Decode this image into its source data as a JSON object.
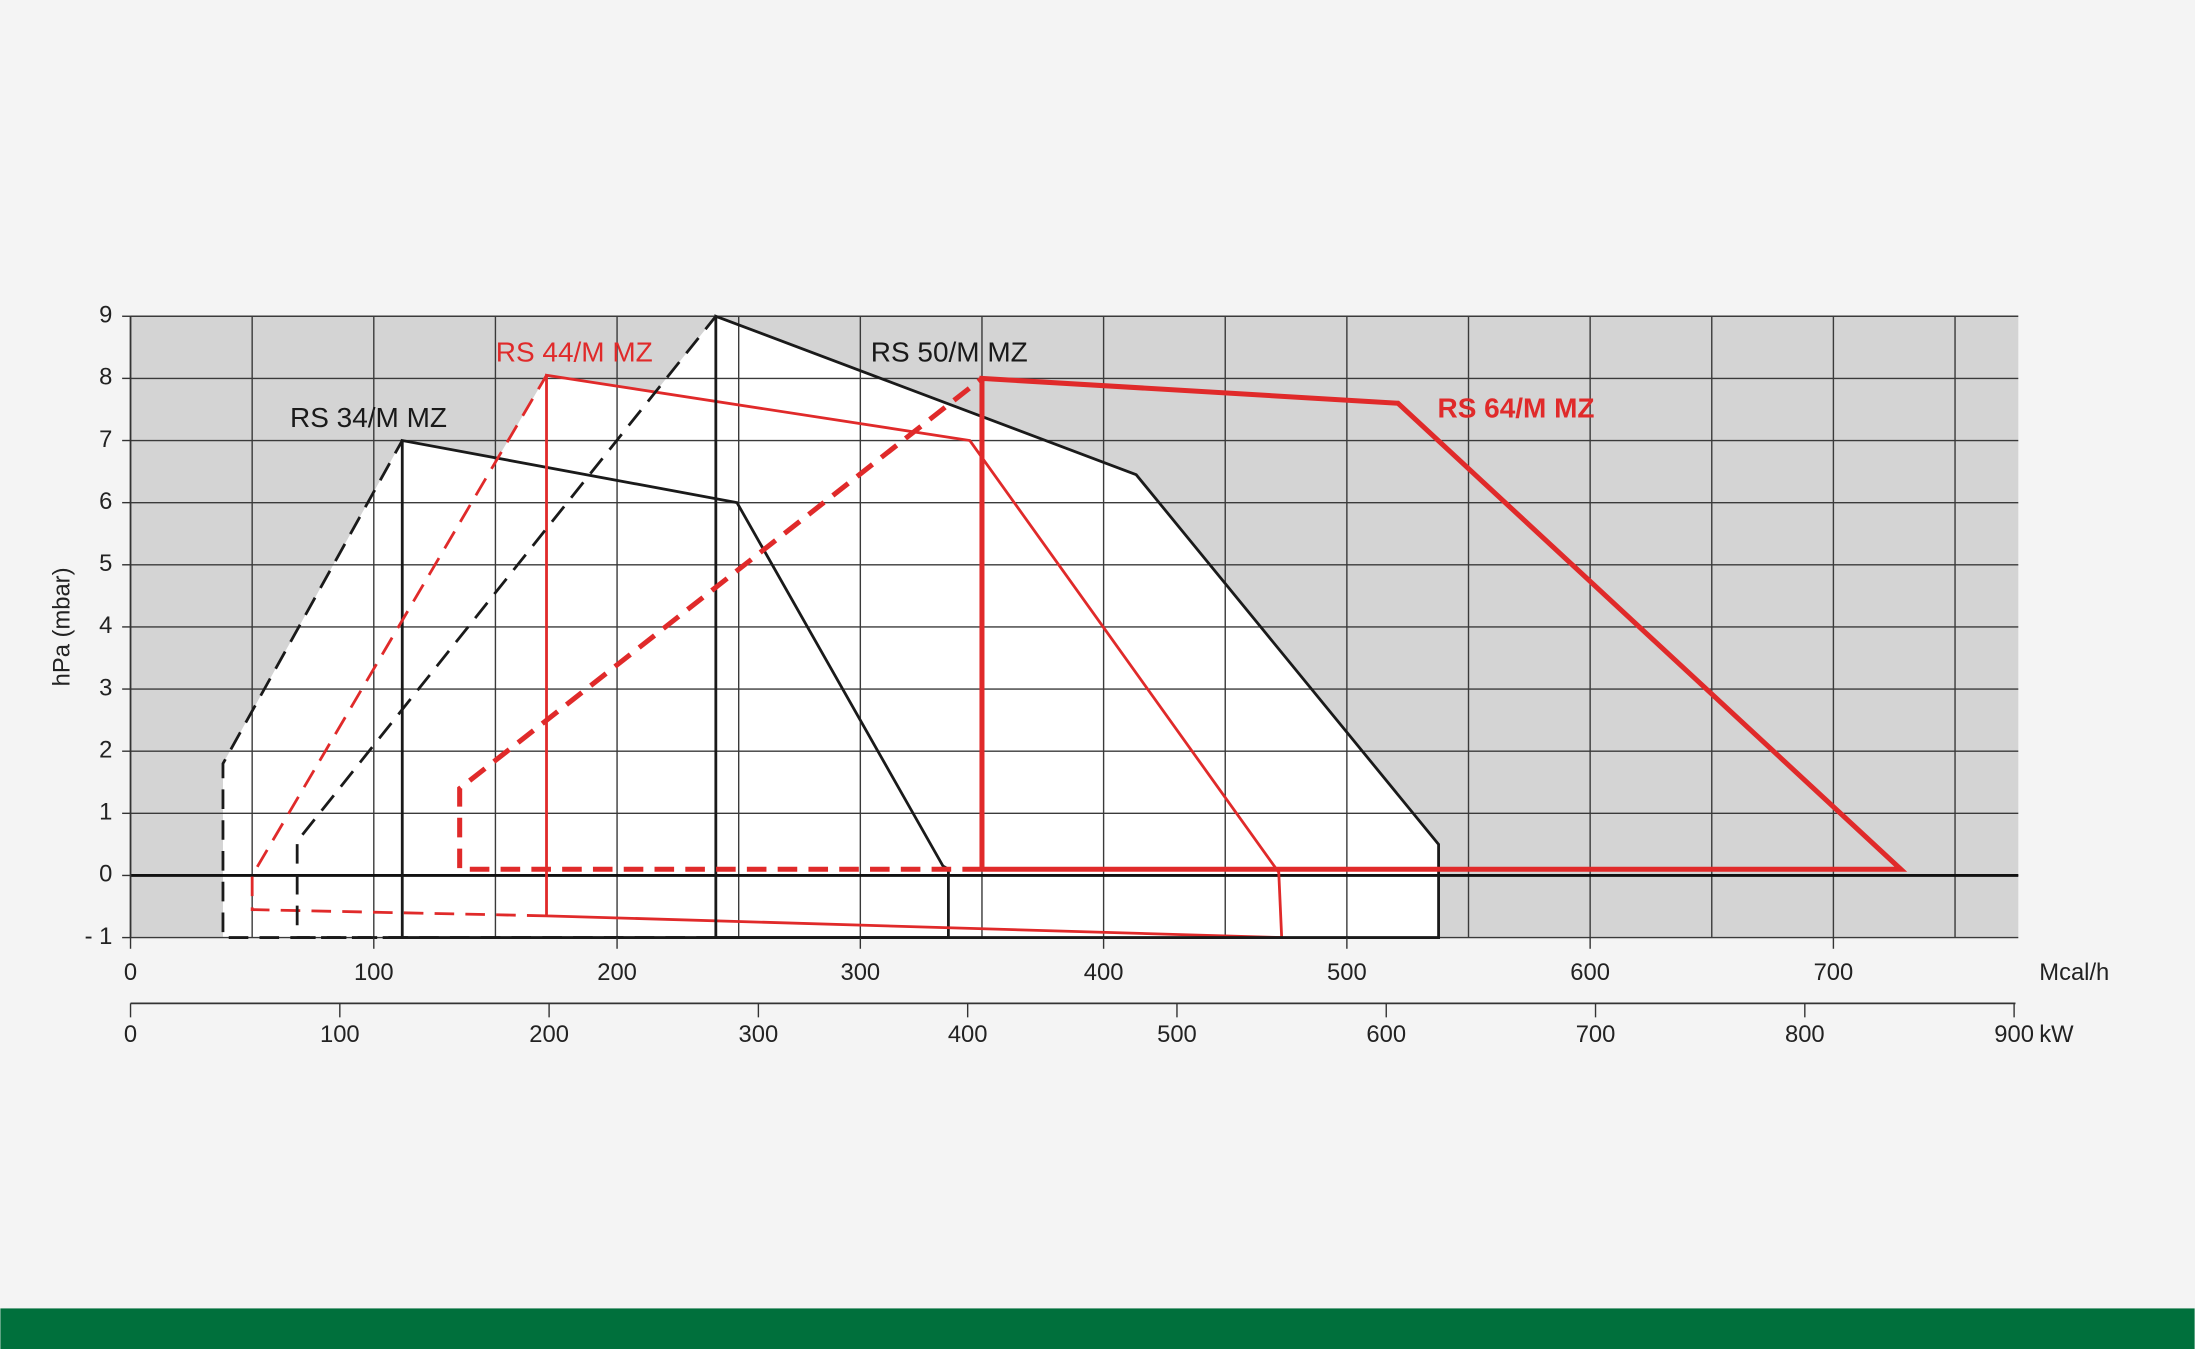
{
  "chart_data": {
    "type": "line",
    "ylabel": "hPa (mbar)",
    "xlabel": "Mcal/h",
    "x2label": "kW",
    "xlim": [
      0,
      776
    ],
    "xticks": [
      0,
      100,
      200,
      300,
      400,
      500,
      600,
      700
    ],
    "xgrid": [
      0,
      50,
      100,
      150,
      200,
      250,
      300,
      350,
      400,
      450,
      500,
      550,
      600,
      650,
      700,
      750
    ],
    "x2lim": [
      0,
      902
    ],
    "x2ticks": [
      0,
      100,
      200,
      300,
      400,
      500,
      600,
      700,
      800,
      900
    ],
    "ylim": [
      -1,
      9
    ],
    "yticks": [
      {
        "value": -1,
        "label": "- 1"
      },
      0,
      1,
      2,
      3,
      4,
      5,
      6,
      7,
      8,
      9
    ],
    "grid": true,
    "series": [
      {
        "name": "RS 34/M MZ",
        "color": "#1a1a1a",
        "line_width": 2,
        "fill": "#ffffff",
        "x": [
          111.7,
          111.7,
          249.3,
          334,
          336.2,
          336.2,
          111.7
        ],
        "values": [
          -1,
          7,
          6,
          0.15,
          0.1,
          -1,
          -1
        ],
        "startup_x": [
          111.7,
          38,
          38,
          111.7
        ],
        "startup_values": [
          -1,
          -1,
          1.8,
          7
        ]
      },
      {
        "name": "RS 44/M MZ",
        "color": "#e02a2a",
        "line_width": 2,
        "fill": "#ffffff",
        "x": [
          171,
          171,
          345,
          472,
          473.2,
          171
        ],
        "values": [
          -0.65,
          8.05,
          7,
          0.05,
          -1,
          -0.65
        ],
        "startup_x": [
          171,
          50,
          50,
          171
        ],
        "startup_values": [
          -0.65,
          -0.55,
          0,
          8.05
        ]
      },
      {
        "name": "RS 50/M MZ",
        "color": "#1a1a1a",
        "line_width": 2,
        "fill": "#ffffff",
        "x": [
          240.6,
          240.6,
          413.4,
          537.7,
          537.7,
          240.6
        ],
        "values": [
          -1,
          9,
          6.45,
          0.5,
          -1,
          -1
        ],
        "startup_x": [
          240.6,
          68.5,
          68.5,
          240.6
        ],
        "startup_values": [
          -1,
          -1,
          0.55,
          9
        ]
      },
      {
        "name": "RS 64/M MZ",
        "color": "#e02a2a",
        "line_width": 3.6,
        "fill": "none",
        "x": [
          350,
          350,
          521,
          727.7,
          350
        ],
        "values": [
          0.1,
          8,
          7.6,
          0.1,
          0.1
        ],
        "startup_x": [
          350,
          135.3,
          135.3,
          350
        ],
        "startup_values": [
          0.1,
          0.1,
          1.4,
          8
        ]
      }
    ]
  }
}
